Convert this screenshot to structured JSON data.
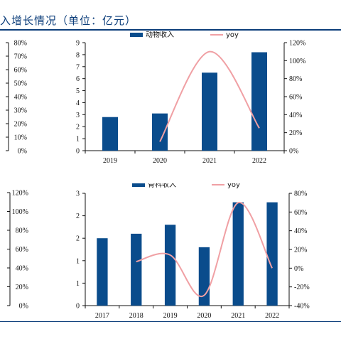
{
  "header": {
    "title": "入增长情况（单位：亿元）"
  },
  "left_partial_axes": [
    {
      "ticks": [
        "80%",
        "70%",
        "60%",
        "50%",
        "40%",
        "30%",
        "20%",
        "10%",
        "0%"
      ]
    },
    {
      "ticks": [
        "120%",
        "100%",
        "80%",
        "60%",
        "40%",
        "20%",
        "0%"
      ]
    }
  ],
  "chart_data": [
    {
      "type": "bar",
      "categories": [
        "2019",
        "2020",
        "2021",
        "2022"
      ],
      "series": [
        {
          "name": "动物收入",
          "kind": "bar",
          "axis": "left",
          "values": [
            2.8,
            3.1,
            6.5,
            8.2
          ]
        },
        {
          "name": "yoy",
          "kind": "line",
          "axis": "right",
          "values": [
            null,
            10,
            110,
            25
          ]
        }
      ],
      "ylim": [
        0,
        9
      ],
      "y_ticks": [
        "0",
        "1",
        "2",
        "3",
        "4",
        "5",
        "6",
        "7",
        "8",
        "9"
      ],
      "y2lim": [
        0,
        120
      ],
      "y2_ticks": [
        "0%",
        "20%",
        "40%",
        "60%",
        "80%",
        "100%",
        "120%"
      ],
      "legend_position": "top",
      "colors": {
        "bar": "#0a4c8c",
        "line": "#f0a0a4"
      }
    },
    {
      "type": "bar",
      "categories": [
        "2017",
        "2018",
        "2019",
        "2020",
        "2021",
        "2022"
      ],
      "series": [
        {
          "name": "骨科收入",
          "kind": "bar",
          "axis": "left",
          "values": [
            1.5,
            1.6,
            1.8,
            1.3,
            2.3,
            2.3
          ]
        },
        {
          "name": "yoy",
          "kind": "line",
          "axis": "right",
          "values": [
            null,
            7,
            14,
            -29,
            70,
            0
          ]
        }
      ],
      "ylim": [
        0,
        2.5
      ],
      "y_ticks": [
        "0",
        "1",
        "1",
        "2",
        "2",
        "3"
      ],
      "y2lim": [
        -40,
        80
      ],
      "y2_ticks": [
        "-40%",
        "-20%",
        "0%",
        "20%",
        "40%",
        "60%",
        "80%"
      ],
      "legend_position": "top",
      "colors": {
        "bar": "#0a4c8c",
        "line": "#f0a0a4"
      }
    }
  ]
}
